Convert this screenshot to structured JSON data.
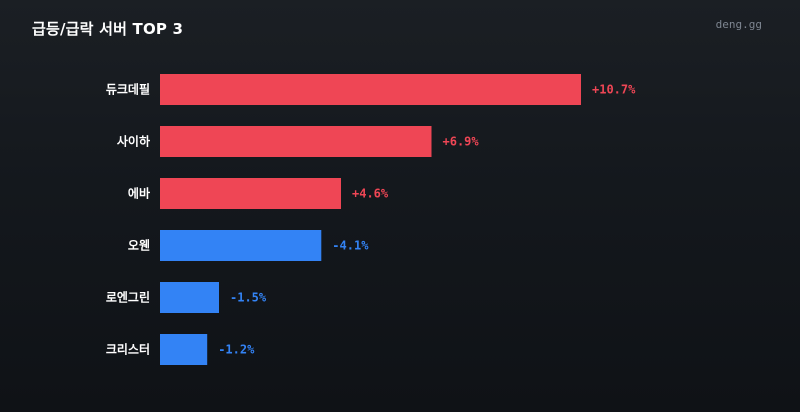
{
  "header": {
    "title": "급등/급락 서버 TOP 3",
    "brand": "deng.gg"
  },
  "colors": {
    "positive": "#ef4655",
    "negative": "#3383f5",
    "text": "#ffffff"
  },
  "chart_data": {
    "type": "bar",
    "orientation": "horizontal",
    "title": "급등/급락 서버 TOP 3",
    "categories": [
      "듀크데필",
      "사이하",
      "에바",
      "오웬",
      "로엔그린",
      "크리스터"
    ],
    "values": [
      10.7,
      6.9,
      4.6,
      -4.1,
      -1.5,
      -1.2
    ],
    "value_labels": [
      "+10.7%",
      "+6.9%",
      "+4.6%",
      "-4.1%",
      "-1.5%",
      "-1.2%"
    ],
    "bar_length": "absolute value",
    "bar_color_rule": "red for increase, blue for decrease",
    "grid": false,
    "legend": "none"
  }
}
